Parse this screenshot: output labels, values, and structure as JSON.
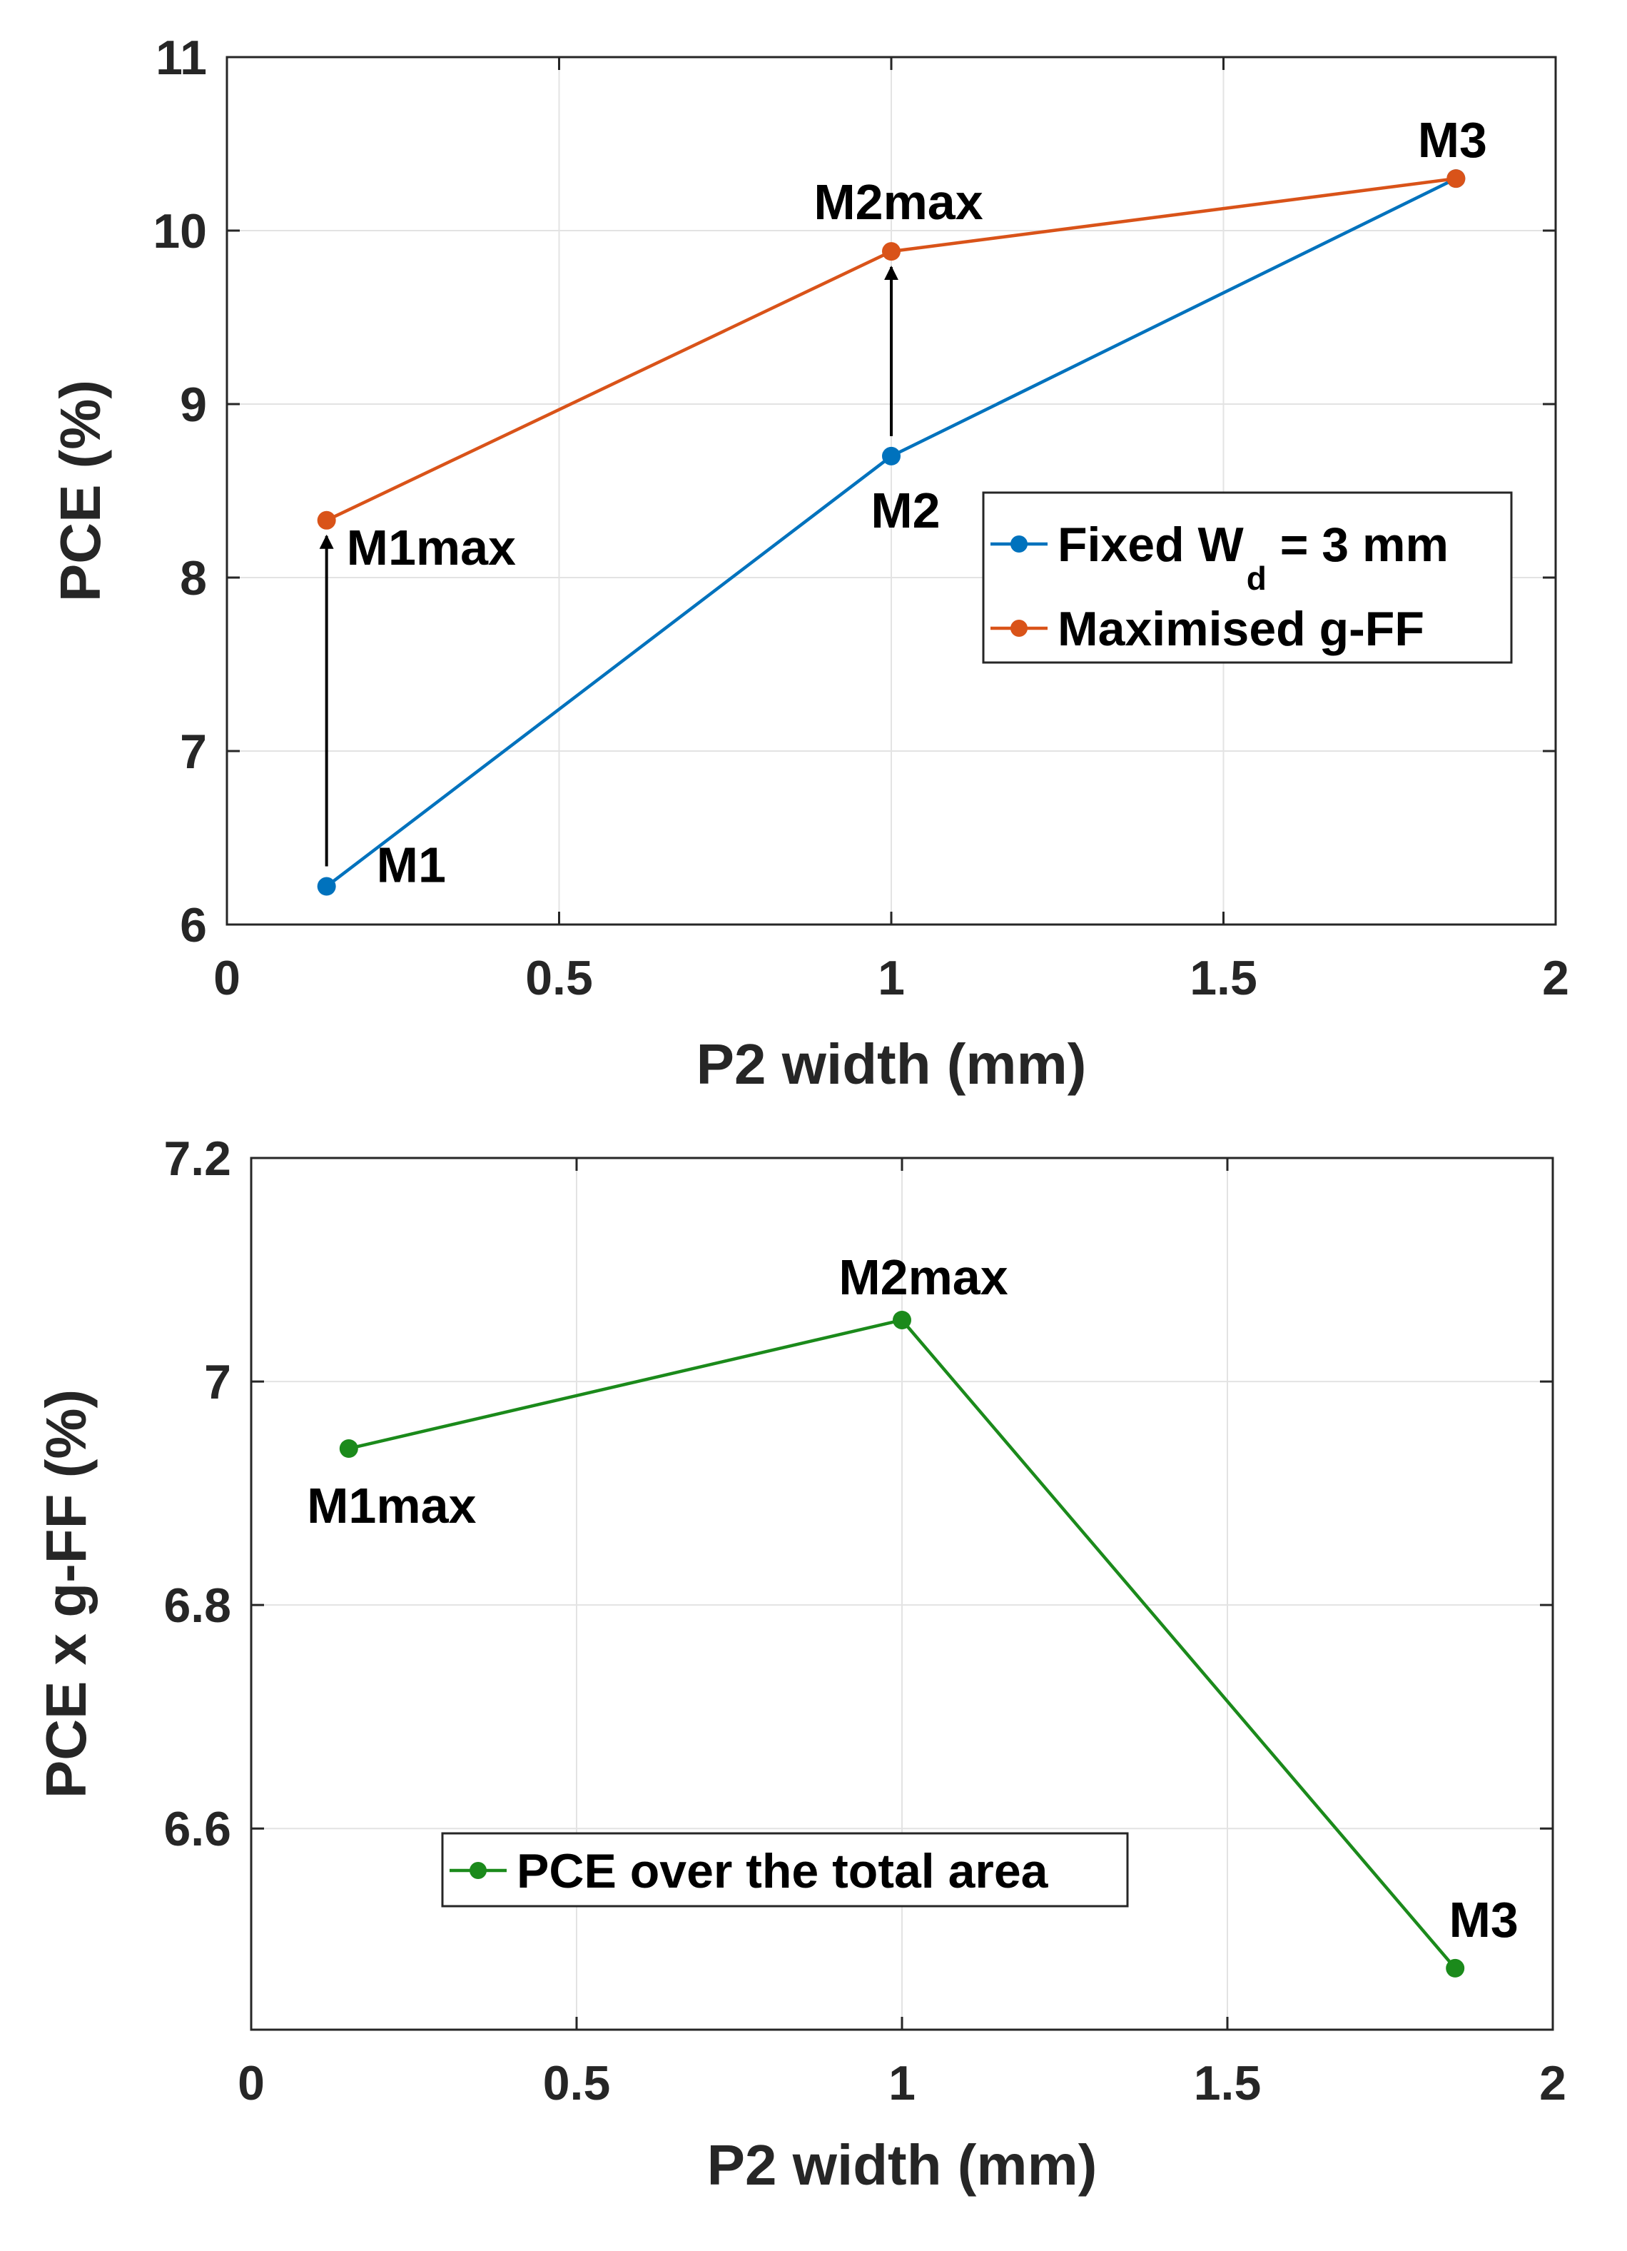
{
  "chart_data": [
    {
      "type": "line",
      "title": "",
      "xlabel": "P2 width (mm)",
      "ylabel": "PCE (%)",
      "xlim": [
        0,
        2
      ],
      "ylim": [
        6,
        11
      ],
      "xticks": [
        0,
        0.5,
        1,
        1.5,
        2
      ],
      "xtick_labels": [
        "0",
        "0.5",
        "1",
        "1.5",
        "2"
      ],
      "yticks": [
        6,
        7,
        8,
        9,
        10,
        11
      ],
      "ytick_labels": [
        "6",
        "7",
        "8",
        "9",
        "10",
        "11"
      ],
      "grid": true,
      "legend_position": "middle-right",
      "series": [
        {
          "name": "Fixed W_d = 3 mm",
          "legend_text": "Fixed W",
          "legend_sub": "d",
          "legend_tail": " = 3 mm",
          "color": "#0072BD",
          "x": [
            0.15,
            1.0,
            1.85
          ],
          "y": [
            6.22,
            8.7,
            10.3
          ]
        },
        {
          "name": "Maximised g-FF",
          "legend_text": "Maximised g-FF",
          "legend_sub": "",
          "legend_tail": "",
          "color": "#D95319",
          "x": [
            0.15,
            1.0,
            1.85
          ],
          "y": [
            8.33,
            9.88,
            10.3
          ]
        }
      ],
      "arrows": [
        {
          "x": 0.15,
          "from": 6.22,
          "to": 8.33
        },
        {
          "x": 1.0,
          "from": 8.7,
          "to": 9.88
        }
      ],
      "annotations": [
        {
          "text": "M1",
          "x": 0.15,
          "y": 6.22
        },
        {
          "text": "M1max",
          "x": 0.15,
          "y": 8.33
        },
        {
          "text": "M2",
          "x": 1.0,
          "y": 8.7
        },
        {
          "text": "M2max",
          "x": 1.0,
          "y": 9.88
        },
        {
          "text": "M3",
          "x": 1.85,
          "y": 10.3
        }
      ]
    },
    {
      "type": "line",
      "title": "",
      "xlabel": "P2 width (mm)",
      "ylabel": "PCE x g-FF (%)",
      "xlim": [
        0,
        2
      ],
      "ylim": [
        6.42,
        7.2
      ],
      "xticks": [
        0,
        0.5,
        1,
        1.5,
        2
      ],
      "xtick_labels": [
        "0",
        "0.5",
        "1",
        "1.5",
        "2"
      ],
      "yticks": [
        6.6,
        6.8,
        7,
        7.2
      ],
      "ytick_labels": [
        "6.6",
        "6.8",
        "7",
        "7.2"
      ],
      "grid": true,
      "legend_position": "lower-left",
      "series": [
        {
          "name": "PCE over the total area",
          "legend_text": "PCE over the total area",
          "legend_sub": "",
          "legend_tail": "",
          "color": "#1B8A1B",
          "x": [
            0.15,
            1.0,
            1.85
          ],
          "y": [
            6.94,
            7.055,
            6.475
          ]
        }
      ],
      "arrows": [],
      "annotations": [
        {
          "text": "M1max",
          "x": 0.15,
          "y": 6.94
        },
        {
          "text": "M2max",
          "x": 1.0,
          "y": 7.055
        },
        {
          "text": "M3",
          "x": 1.85,
          "y": 6.475
        }
      ]
    }
  ]
}
